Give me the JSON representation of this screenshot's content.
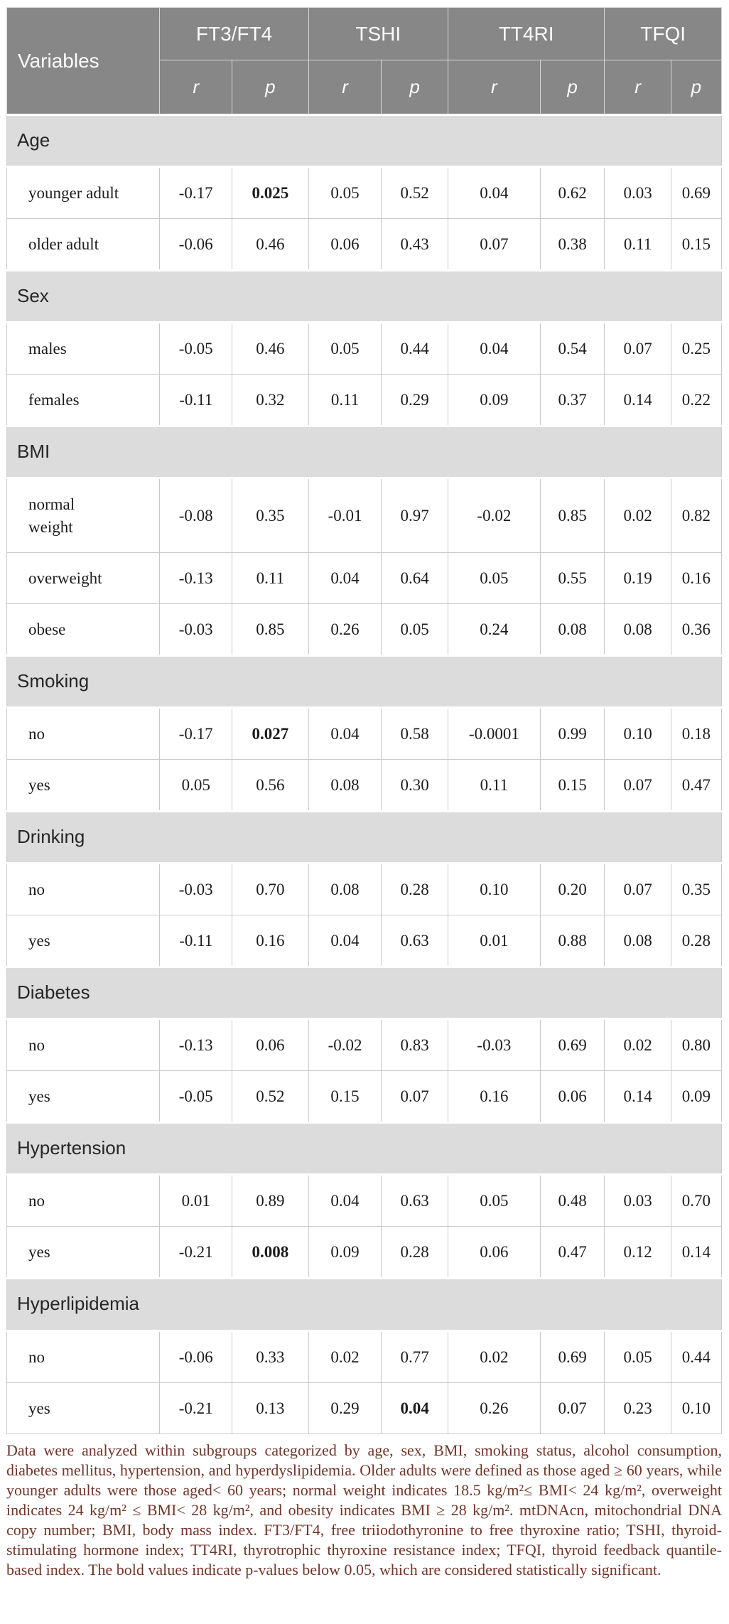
{
  "table": {
    "header": {
      "variables": "Variables",
      "groups": [
        "FT3/FT4",
        "TSHI",
        "TT4RI",
        "TFQI"
      ],
      "subheaders": [
        "r",
        "p"
      ]
    },
    "col_widths_pct": [
      21.2,
      10.0,
      10.6,
      10.1,
      9.2,
      12.8,
      8.9,
      9.2,
      7.0
    ],
    "sections": [
      {
        "name": "Age",
        "rows": [
          {
            "label": "younger adult",
            "values": [
              "-0.17",
              "0.025",
              "0.05",
              "0.52",
              "0.04",
              "0.62",
              "0.03",
              "0.69"
            ],
            "bold": [
              1
            ]
          },
          {
            "label": "older adult",
            "values": [
              "-0.06",
              "0.46",
              "0.06",
              "0.43",
              "0.07",
              "0.38",
              "0.11",
              "0.15"
            ],
            "bold": []
          }
        ]
      },
      {
        "name": "Sex",
        "rows": [
          {
            "label": "males",
            "values": [
              "-0.05",
              "0.46",
              "0.05",
              "0.44",
              "0.04",
              "0.54",
              "0.07",
              "0.25"
            ],
            "bold": []
          },
          {
            "label": "females",
            "values": [
              "-0.11",
              "0.32",
              "0.11",
              "0.29",
              "0.09",
              "0.37",
              "0.14",
              "0.22"
            ],
            "bold": []
          }
        ]
      },
      {
        "name": "BMI",
        "rows": [
          {
            "label": "normal weight",
            "values": [
              "-0.08",
              "0.35",
              "-0.01",
              "0.97",
              "-0.02",
              "0.85",
              "0.02",
              "0.82"
            ],
            "bold": []
          },
          {
            "label": "overweight",
            "values": [
              "-0.13",
              "0.11",
              "0.04",
              "0.64",
              "0.05",
              "0.55",
              "0.19",
              "0.16"
            ],
            "bold": []
          },
          {
            "label": "obese",
            "values": [
              "-0.03",
              "0.85",
              "0.26",
              "0.05",
              "0.24",
              "0.08",
              "0.08",
              "0.36"
            ],
            "bold": []
          }
        ]
      },
      {
        "name": "Smoking",
        "rows": [
          {
            "label": "no",
            "values": [
              "-0.17",
              "0.027",
              "0.04",
              "0.58",
              "-0.0001",
              "0.99",
              "0.10",
              "0.18"
            ],
            "bold": [
              1
            ]
          },
          {
            "label": "yes",
            "values": [
              "0.05",
              "0.56",
              "0.08",
              "0.30",
              "0.11",
              "0.15",
              "0.07",
              "0.47"
            ],
            "bold": []
          }
        ]
      },
      {
        "name": "Drinking",
        "rows": [
          {
            "label": "no",
            "values": [
              "-0.03",
              "0.70",
              "0.08",
              "0.28",
              "0.10",
              "0.20",
              "0.07",
              "0.35"
            ],
            "bold": []
          },
          {
            "label": "yes",
            "values": [
              "-0.11",
              "0.16",
              "0.04",
              "0.63",
              "0.01",
              "0.88",
              "0.08",
              "0.28"
            ],
            "bold": []
          }
        ]
      },
      {
        "name": "Diabetes",
        "rows": [
          {
            "label": "no",
            "values": [
              "-0.13",
              "0.06",
              "-0.02",
              "0.83",
              "-0.03",
              "0.69",
              "0.02",
              "0.80"
            ],
            "bold": []
          },
          {
            "label": "yes",
            "values": [
              "-0.05",
              "0.52",
              "0.15",
              "0.07",
              "0.16",
              "0.06",
              "0.14",
              "0.09"
            ],
            "bold": []
          }
        ]
      },
      {
        "name": "Hypertension",
        "rows": [
          {
            "label": "no",
            "values": [
              "0.01",
              "0.89",
              "0.04",
              "0.63",
              "0.05",
              "0.48",
              "0.03",
              "0.70"
            ],
            "bold": []
          },
          {
            "label": "yes",
            "values": [
              "-0.21",
              "0.008",
              "0.09",
              "0.28",
              "0.06",
              "0.47",
              "0.12",
              "0.14"
            ],
            "bold": [
              1
            ]
          }
        ]
      },
      {
        "name": "Hyperlipidemia",
        "rows": [
          {
            "label": "no",
            "values": [
              "-0.06",
              "0.33",
              "0.02",
              "0.77",
              "0.02",
              "0.69",
              "0.05",
              "0.44"
            ],
            "bold": []
          },
          {
            "label": "yes",
            "values": [
              "-0.21",
              "0.13",
              "0.29",
              "0.04",
              "0.26",
              "0.07",
              "0.23",
              "0.10"
            ],
            "bold": [
              3
            ]
          }
        ]
      }
    ]
  },
  "footnote": {
    "text": "Data were analyzed within subgroups categorized by age, sex, BMI, smoking status, alcohol consumption, diabetes mellitus, hypertension, and hyperdyslipidemia. Older adults were defined as those aged ≥ 60 years, while younger adults were those aged< 60 years; normal weight indicates 18.5 kg/m²≤ BMI< 24 kg/m², overweight indicates 24 kg/m² ≤ BMI< 28 kg/m², and obesity indicates BMI ≥ 28 kg/m². mtDNAcn, mitochondrial DNA copy number; BMI, body mass index. FT3/FT4, free triiodothyronine to free thyroxine ratio; TSHI, thyroid-stimulating hormone index; TT4RI, thyrotrophic thyroxine resistance index; TFQI, thyroid feedback quantile-based index. The bold values indicate p-values below 0.05, which are considered statistically significant."
  },
  "colors": {
    "header_bg": "#878787",
    "header_text": "#fcfcfc",
    "section_bg": "#dcdcdc",
    "grid": "#c9c9c9",
    "footnote_text": "#703529"
  }
}
